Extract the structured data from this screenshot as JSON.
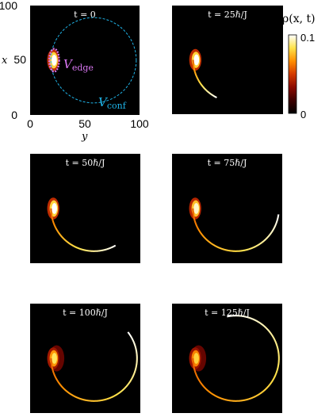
{
  "chart_data": {
    "type": "heatmap",
    "grid_size": 100,
    "axes": {
      "xlabel": "y",
      "ylabel": "x",
      "xlim": [
        0,
        100
      ],
      "ylim": [
        0,
        100
      ],
      "xticks": [
        "0",
        "50",
        "100"
      ],
      "yticks": [
        "0",
        "50",
        "100"
      ]
    },
    "colorbar": {
      "label_text": "ρ(x, t)",
      "min_label": "0",
      "max_label": "0.1",
      "range": [
        0,
        0.1
      ],
      "stops": [
        "#000000",
        "#3d0000",
        "#8c0a00",
        "#d43a00",
        "#ff8f00",
        "#ffe34a",
        "#ffffff"
      ]
    },
    "potentials": {
      "edge_label": "V",
      "edge_sub": "edge",
      "edge_color": "#d977f2",
      "conf_label": "V",
      "conf_sub": "conf",
      "conf_color": "#1fb4e8",
      "conf_circle": {
        "cx": 58,
        "cy": 50,
        "r": 39
      }
    },
    "panels": [
      {
        "title": "t = 0",
        "arc_start_deg": 180,
        "arc_end_deg": 180,
        "blob_intensity": 1.0
      },
      {
        "title": "t = 25ℏ/J",
        "arc_start_deg": 180,
        "arc_end_deg": 243,
        "blob_intensity": 1.0
      },
      {
        "title": "t = 50ℏ/J",
        "arc_start_deg": 180,
        "arc_end_deg": 300,
        "blob_intensity": 1.0
      },
      {
        "title": "t = 75ℏ/J",
        "arc_start_deg": 180,
        "arc_end_deg": 352,
        "blob_intensity": 0.95
      },
      {
        "title": "t = 100ℏ/J",
        "arc_start_deg": 180,
        "arc_end_deg": 398,
        "blob_intensity": 0.85
      },
      {
        "title": "t = 125ℏ/J",
        "arc_start_deg": 180,
        "arc_end_deg": 462,
        "blob_intensity": 0.8
      }
    ]
  }
}
